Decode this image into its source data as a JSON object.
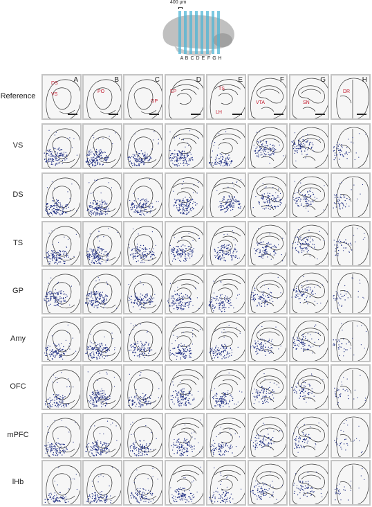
{
  "scale_label": "400 μm",
  "slice_letters": [
    "A",
    "B",
    "C",
    "D",
    "E",
    "F",
    "G",
    "H"
  ],
  "columns": [
    "A",
    "B",
    "C",
    "D",
    "E",
    "F",
    "G",
    "H"
  ],
  "row_labels": [
    "Reference",
    "VS",
    "DS",
    "TS",
    "GP",
    "Amy",
    "OFC",
    "mPFC",
    "lHb"
  ],
  "reference_regions": [
    [
      {
        "text": "DS"
      },
      {
        "text": "VS"
      }
    ],
    [
      {
        "text": "PO"
      }
    ],
    [
      {
        "text": "GP"
      }
    ],
    [
      {
        "text": "EP"
      }
    ],
    [
      {
        "text": "TS"
      },
      {
        "text": "LH"
      }
    ],
    [
      {
        "text": "VTA"
      }
    ],
    [
      {
        "text": "SN"
      }
    ],
    [
      {
        "text": "DR"
      }
    ]
  ],
  "colors": {
    "dots": "#1f2e82",
    "reference_labels": "#c2182b",
    "slice_planes": "#4fb6d6",
    "brain": "#8c8c8c",
    "panel_border": "#c4c4c4"
  }
}
